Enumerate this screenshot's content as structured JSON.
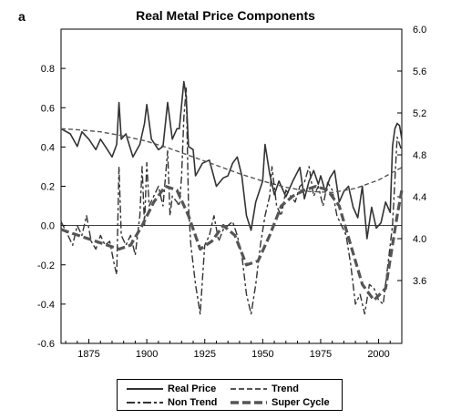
{
  "panel_letter": "a",
  "colors": {
    "real_price": "#333333",
    "trend": "#555555",
    "non_trend": "#333333",
    "super_cycle": "#555555",
    "zero_line": "#000000"
  },
  "chart_data": {
    "type": "line",
    "title": "Real Metal Price Components",
    "xlabel": "",
    "ylabel_left": "",
    "ylabel_right": "",
    "xlim": [
      1863,
      2010
    ],
    "ylim_left": [
      -0.6,
      1.0
    ],
    "ylim_right": [
      3.0,
      6.0
    ],
    "x_ticks": [
      1875,
      1900,
      1925,
      1950,
      1975,
      2000
    ],
    "x_tick_labels": [
      "1875",
      "1900",
      "1925",
      "1950",
      "1975",
      "2000"
    ],
    "y_left_ticks": [
      -0.6,
      -0.4,
      -0.2,
      0.0,
      0.2,
      0.4,
      0.6,
      0.8
    ],
    "y_left_tick_labels": [
      "-0.6",
      "-0.4",
      "-0.2",
      "0.0",
      "0.2",
      "0.4",
      "0.6",
      "0.8"
    ],
    "y_right_ticks": [
      3.6,
      4.0,
      4.4,
      4.8,
      5.2,
      5.6,
      6.0
    ],
    "y_right_tick_labels": [
      "3.6",
      "4.0",
      "4.4",
      "4.8",
      "5.2",
      "5.6",
      "6.0"
    ],
    "zero_line": 0.0,
    "grid": false,
    "legend_position": "bottom",
    "series": [
      {
        "name": "Real Price",
        "axis": "right",
        "style": "solid",
        "x": [
          1863,
          1867,
          1870,
          1872,
          1875,
          1878,
          1880,
          1883,
          1885,
          1887,
          1888,
          1889,
          1891,
          1894,
          1897,
          1899,
          1900,
          1902,
          1905,
          1907,
          1909,
          1911,
          1913,
          1914,
          1916,
          1917,
          1918,
          1920,
          1921,
          1924,
          1927,
          1930,
          1933,
          1935,
          1937,
          1939,
          1941,
          1943,
          1945,
          1947,
          1950,
          1951,
          1953,
          1955,
          1957,
          1960,
          1963,
          1966,
          1968,
          1970,
          1972,
          1974,
          1975,
          1977,
          1979,
          1981,
          1983,
          1985,
          1987,
          1989,
          1991,
          1993,
          1995,
          1997,
          1999,
          2001,
          2003,
          2005,
          2006,
          2007,
          2008,
          2009,
          2010
        ],
        "y": [
          5.05,
          5.0,
          4.88,
          5.02,
          4.95,
          4.85,
          4.95,
          4.85,
          4.78,
          4.9,
          5.3,
          4.95,
          5.0,
          4.78,
          4.9,
          5.1,
          5.28,
          4.95,
          4.85,
          4.88,
          5.3,
          4.95,
          5.05,
          5.05,
          5.5,
          5.35,
          4.88,
          4.85,
          4.6,
          4.72,
          4.75,
          4.5,
          4.58,
          4.6,
          4.72,
          4.78,
          4.6,
          4.22,
          4.08,
          4.35,
          4.55,
          4.9,
          4.62,
          4.42,
          4.55,
          4.4,
          4.55,
          4.68,
          4.38,
          4.55,
          4.65,
          4.52,
          4.6,
          4.45,
          4.58,
          4.65,
          4.35,
          4.45,
          4.5,
          4.3,
          4.2,
          4.5,
          4.0,
          4.3,
          4.1,
          4.15,
          4.35,
          4.25,
          4.88,
          5.05,
          5.1,
          5.08,
          4.95
        ]
      },
      {
        "name": "Trend",
        "axis": "right",
        "style": "dashed",
        "x": [
          1863,
          1870,
          1880,
          1890,
          1900,
          1910,
          1920,
          1930,
          1940,
          1950,
          1960,
          1970,
          1980,
          1990,
          2000,
          2010
        ],
        "y": [
          5.05,
          5.04,
          5.02,
          4.98,
          4.93,
          4.86,
          4.78,
          4.7,
          4.62,
          4.55,
          4.49,
          4.45,
          4.44,
          4.48,
          4.56,
          4.68
        ]
      },
      {
        "name": "Non Trend",
        "axis": "left",
        "style": "long-short dash",
        "x": [
          1863,
          1866,
          1868,
          1870,
          1872,
          1874,
          1876,
          1878,
          1880,
          1882,
          1884,
          1886,
          1887,
          1888,
          1889,
          1891,
          1893,
          1895,
          1897,
          1898,
          1899,
          1900,
          1901,
          1903,
          1905,
          1907,
          1909,
          1910,
          1911,
          1913,
          1914,
          1915,
          1916,
          1917,
          1918,
          1919,
          1921,
          1923,
          1925,
          1927,
          1929,
          1931,
          1933,
          1935,
          1937,
          1939,
          1941,
          1943,
          1945,
          1947,
          1949,
          1951,
          1953,
          1954,
          1956,
          1958,
          1960,
          1962,
          1964,
          1966,
          1968,
          1970,
          1972,
          1974,
          1976,
          1978,
          1980,
          1982,
          1984,
          1986,
          1988,
          1990,
          1992,
          1994,
          1996,
          1998,
          2000,
          2002,
          2004,
          2006,
          2008,
          2010
        ],
        "y": [
          0.02,
          -0.05,
          -0.1,
          0.0,
          -0.05,
          0.05,
          -0.08,
          -0.12,
          -0.05,
          -0.1,
          -0.08,
          -0.2,
          -0.25,
          0.3,
          -0.05,
          -0.1,
          -0.05,
          -0.15,
          0.05,
          0.3,
          0.0,
          0.32,
          0.1,
          0.15,
          0.2,
          0.1,
          0.38,
          0.05,
          0.15,
          0.12,
          0.1,
          0.25,
          0.55,
          0.7,
          0.1,
          -0.1,
          -0.3,
          -0.45,
          -0.1,
          -0.05,
          0.05,
          -0.08,
          -0.02,
          0.0,
          0.02,
          -0.05,
          -0.15,
          -0.35,
          -0.45,
          -0.3,
          -0.1,
          0.05,
          0.15,
          0.3,
          0.1,
          0.05,
          0.18,
          0.15,
          0.12,
          0.2,
          0.22,
          0.3,
          0.15,
          0.2,
          0.1,
          0.22,
          0.18,
          0.05,
          0.0,
          -0.05,
          -0.2,
          -0.4,
          -0.35,
          -0.45,
          -0.3,
          -0.32,
          -0.38,
          -0.4,
          -0.2,
          0.0,
          0.45,
          0.38
        ]
      },
      {
        "name": "Super Cycle",
        "axis": "left",
        "style": "heavy dash",
        "x": [
          1863,
          1868,
          1873,
          1878,
          1883,
          1888,
          1893,
          1898,
          1903,
          1908,
          1913,
          1918,
          1923,
          1928,
          1933,
          1938,
          1943,
          1948,
          1953,
          1958,
          1963,
          1968,
          1973,
          1978,
          1983,
          1988,
          1993,
          1998,
          2003,
          2008,
          2010
        ],
        "y": [
          -0.02,
          -0.04,
          -0.06,
          -0.08,
          -0.1,
          -0.12,
          -0.1,
          0.0,
          0.12,
          0.2,
          0.18,
          0.05,
          -0.12,
          -0.08,
          0.0,
          -0.05,
          -0.2,
          -0.18,
          -0.05,
          0.1,
          0.15,
          0.18,
          0.2,
          0.18,
          0.1,
          -0.1,
          -0.3,
          -0.38,
          -0.32,
          0.05,
          0.18
        ]
      }
    ]
  },
  "legend": {
    "items": [
      "Real Price",
      "Trend",
      "Non Trend",
      "Super Cycle"
    ]
  }
}
